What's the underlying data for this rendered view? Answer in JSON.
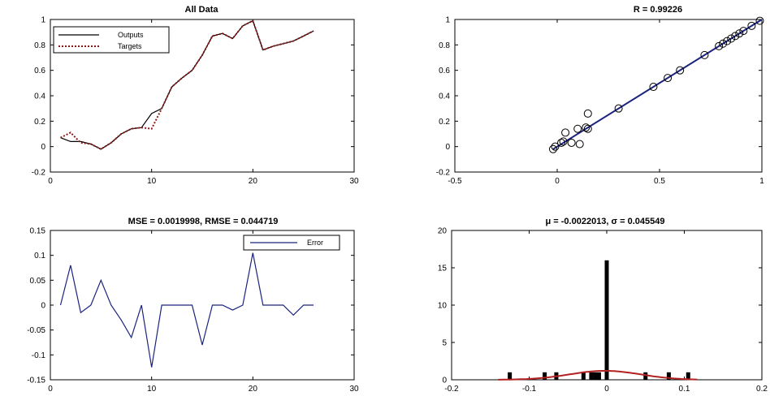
{
  "chart_data": [
    {
      "type": "line",
      "title": "All Data",
      "xlim": [
        0,
        30
      ],
      "ylim": [
        -0.2,
        1
      ],
      "xticks": [
        0,
        10,
        20,
        30
      ],
      "yticks": [
        -0.2,
        0,
        0.2,
        0.4,
        0.6,
        0.8,
        1
      ],
      "grid": false,
      "legend": "top-left",
      "series": [
        {
          "name": "Outputs",
          "color": "#000000",
          "style": "solid",
          "x": [
            1,
            2,
            3,
            4,
            5,
            6,
            7,
            8,
            9,
            10,
            11,
            12,
            13,
            14,
            15,
            16,
            17,
            18,
            19,
            20,
            21,
            22,
            23,
            24,
            25,
            26
          ],
          "y": [
            0.07,
            0.04,
            0.04,
            0.02,
            -0.02,
            0.03,
            0.1,
            0.14,
            0.15,
            0.26,
            0.3,
            0.47,
            0.54,
            0.6,
            0.72,
            0.87,
            0.89,
            0.85,
            0.95,
            0.99,
            0.76,
            0.79,
            0.81,
            0.83,
            0.87,
            0.91
          ]
        },
        {
          "name": "Targets",
          "color": "#8b1a1a",
          "style": "dotted",
          "x": [
            1,
            2,
            3,
            4,
            5,
            6,
            7,
            8,
            9,
            10,
            11,
            12,
            13,
            14,
            15,
            16,
            17,
            18,
            19,
            20,
            21,
            22,
            23,
            24,
            25,
            26
          ],
          "y": [
            0.07,
            0.11,
            0.03,
            0.02,
            -0.02,
            0.03,
            0.1,
            0.14,
            0.15,
            0.14,
            0.3,
            0.47,
            0.54,
            0.6,
            0.72,
            0.87,
            0.89,
            0.85,
            0.95,
            0.99,
            0.76,
            0.79,
            0.81,
            0.83,
            0.87,
            0.91
          ]
        }
      ]
    },
    {
      "type": "scatter",
      "title": "R = 0.99226",
      "xlim": [
        -0.5,
        1
      ],
      "ylim": [
        -0.2,
        1
      ],
      "xticks": [
        -0.5,
        0,
        0.5,
        1
      ],
      "yticks": [
        -0.2,
        0,
        0.2,
        0.4,
        0.6,
        0.8,
        1
      ],
      "grid": false,
      "points": {
        "x": [
          -0.02,
          0.03,
          0.04,
          0.07,
          0.1,
          0.11,
          0.14,
          0.15,
          0.15,
          0.3,
          0.47,
          0.54,
          0.6,
          0.72,
          0.79,
          0.81,
          0.83,
          0.85,
          0.87,
          0.89,
          0.91,
          0.95,
          0.99,
          -0.01,
          0.02
        ],
        "y": [
          -0.02,
          0.04,
          0.11,
          0.03,
          0.14,
          0.02,
          0.15,
          0.14,
          0.26,
          0.3,
          0.47,
          0.54,
          0.6,
          0.72,
          0.79,
          0.81,
          0.83,
          0.85,
          0.87,
          0.89,
          0.91,
          0.95,
          0.99,
          0.0,
          0.03
        ]
      },
      "fit_line": {
        "x": [
          -0.02,
          1.0
        ],
        "y": [
          -0.02,
          1.0
        ],
        "color": "#1a237e"
      }
    },
    {
      "type": "line",
      "title": "MSE = 0.0019998, RMSE = 0.044719",
      "xlim": [
        0,
        30
      ],
      "ylim": [
        -0.15,
        0.15
      ],
      "xticks": [
        0,
        10,
        20,
        30
      ],
      "yticks": [
        -0.15,
        -0.1,
        -0.05,
        0,
        0.05,
        0.1,
        0.15
      ],
      "grid": false,
      "legend": "top-right",
      "series": [
        {
          "name": "Error",
          "color": "#1a237e",
          "x": [
            1,
            2,
            3,
            4,
            5,
            6,
            7,
            8,
            9,
            10,
            11,
            12,
            13,
            14,
            15,
            16,
            17,
            18,
            19,
            20,
            21,
            22,
            23,
            24,
            25,
            26
          ],
          "y": [
            0.0,
            0.08,
            -0.015,
            0.0,
            0.05,
            0.0,
            -0.03,
            -0.065,
            0.0,
            -0.125,
            0.0,
            0.0,
            0.0,
            0.0,
            -0.08,
            0.0,
            0.0,
            -0.01,
            0.0,
            0.105,
            0.0,
            0.0,
            0.0,
            -0.02,
            0.0,
            0.0
          ]
        }
      ]
    },
    {
      "type": "bar",
      "title": "μ = -0.0022013, σ = 0.045549",
      "xlim": [
        -0.2,
        0.2
      ],
      "ylim": [
        0,
        20
      ],
      "xticks": [
        -0.2,
        -0.1,
        0,
        0.1,
        0.2
      ],
      "yticks": [
        0,
        5,
        10,
        15,
        20
      ],
      "grid": false,
      "bars": {
        "x": [
          -0.125,
          -0.08,
          -0.065,
          -0.03,
          -0.02,
          -0.015,
          -0.01,
          0.0,
          0.05,
          0.08,
          0.105
        ],
        "y": [
          1,
          1,
          1,
          1,
          1,
          1,
          1,
          16,
          1,
          1,
          1
        ]
      },
      "normal_fit": {
        "mu": -0.0022013,
        "sigma": 0.045549,
        "scale": 1.2,
        "color": "#b22222"
      }
    }
  ]
}
